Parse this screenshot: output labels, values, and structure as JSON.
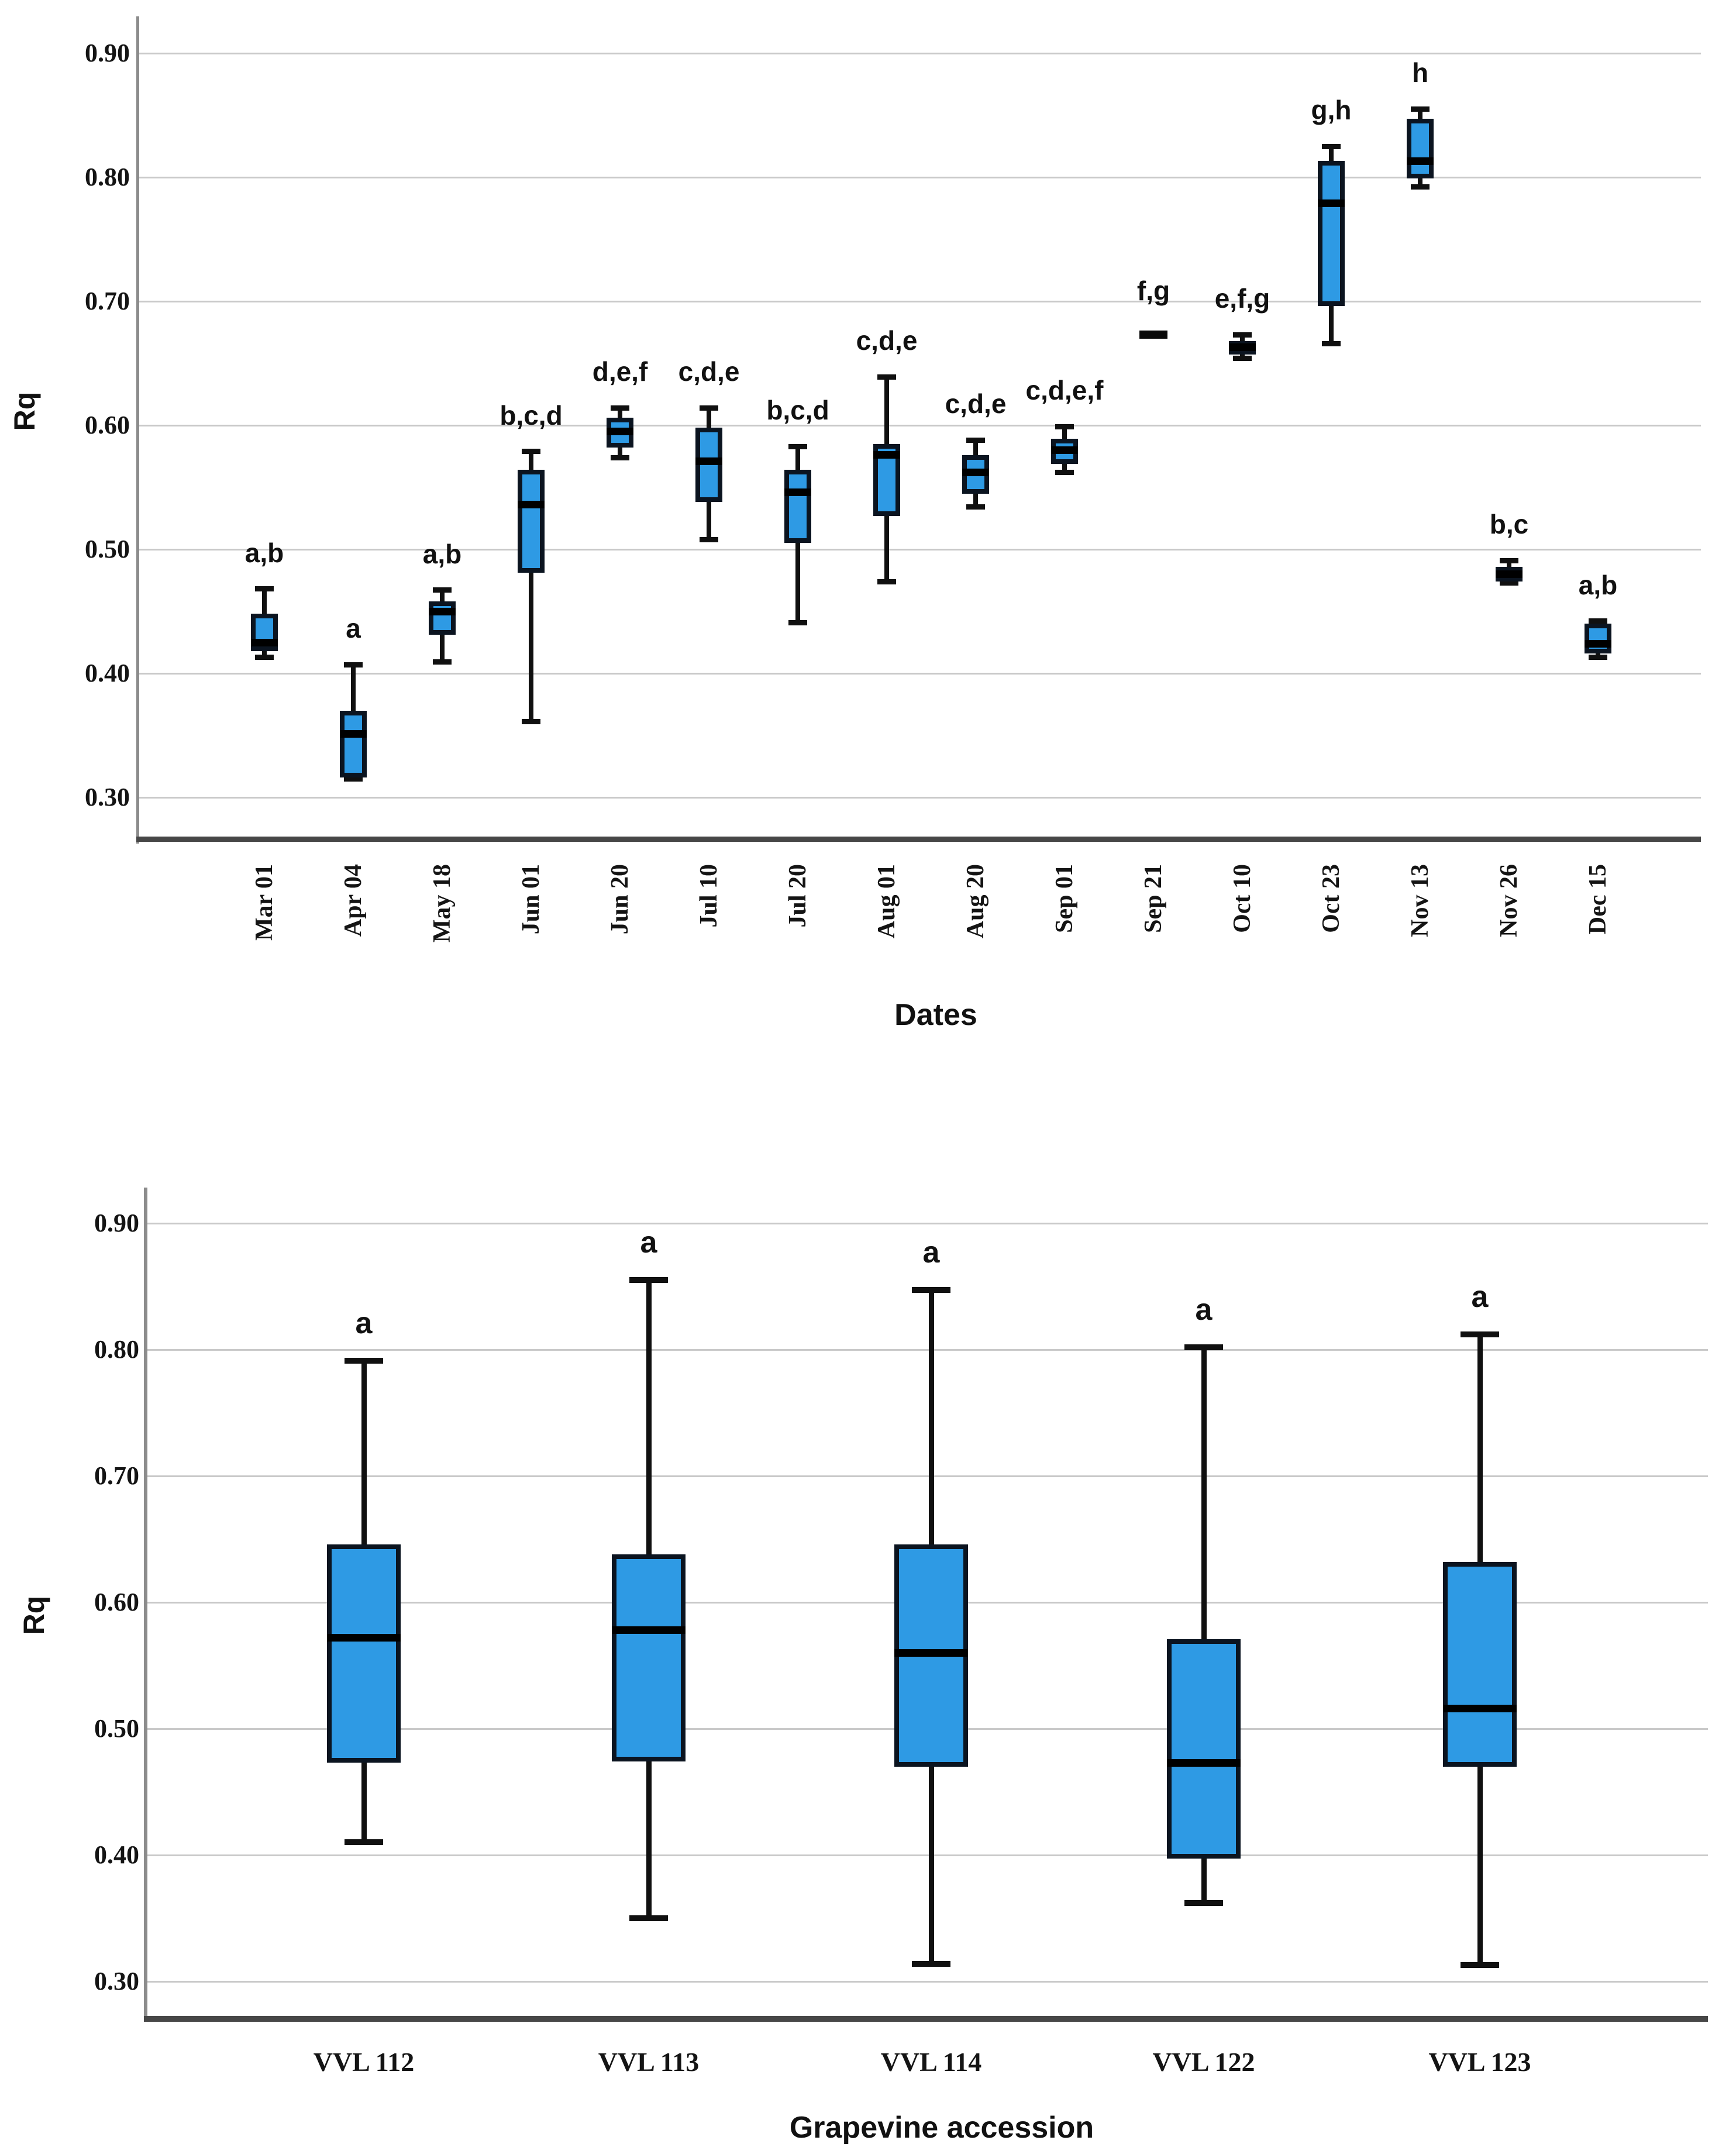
{
  "figure": {
    "description": "Two stacked box-and-whisker plots of Rq values",
    "palette": {
      "box_fill": "#2e9ae4",
      "box_border": "#0b1420",
      "median_color": "#000000",
      "whisker_color": "#101010",
      "grid_color": "#c9c9c9",
      "spine_color": "#8c8c8c",
      "baseline_color": "#474747",
      "text_color": "#141414",
      "background": "#ffffff"
    }
  },
  "chart_data": [
    {
      "type": "boxplot",
      "title": "",
      "ylabel": "Rq",
      "xlabel": "Dates",
      "ylim": [
        0.27,
        0.93
      ],
      "grid": true,
      "legend": "none",
      "yticks": [
        0.9,
        0.8,
        0.7,
        0.6,
        0.5,
        0.4,
        0.3
      ],
      "ytick_labels": [
        "0.90",
        "0.80",
        "0.70",
        "0.60",
        "0.50",
        "0.40",
        "0.30"
      ],
      "categories": [
        "Mar 01",
        "Apr 04",
        "May 18",
        "Jun 01",
        "Jun 20",
        "Jul 10",
        "Jul 20",
        "Aug 01",
        "Aug 20",
        "Sep 01",
        "Sep 21",
        "Oct 10",
        "Oct 23",
        "Nov 13",
        "Nov 26",
        "Dec 15"
      ],
      "boxes": [
        {
          "category": "Mar 01",
          "low": 0.413,
          "q1": 0.418,
          "median": 0.425,
          "q3": 0.448,
          "high": 0.468,
          "sig": "a,b"
        },
        {
          "category": "Apr 04",
          "low": 0.315,
          "q1": 0.316,
          "median": 0.351,
          "q3": 0.37,
          "high": 0.407,
          "sig": "a"
        },
        {
          "category": "May 18",
          "low": 0.409,
          "q1": 0.431,
          "median": 0.45,
          "q3": 0.458,
          "high": 0.467,
          "sig": "a,b"
        },
        {
          "category": "Jun 01",
          "low": 0.361,
          "q1": 0.481,
          "median": 0.536,
          "q3": 0.564,
          "high": 0.579,
          "sig": "b,c,d"
        },
        {
          "category": "Jun 20",
          "low": 0.574,
          "q1": 0.582,
          "median": 0.595,
          "q3": 0.606,
          "high": 0.614,
          "sig": "d,e,f"
        },
        {
          "category": "Jul 10",
          "low": 0.508,
          "q1": 0.538,
          "median": 0.571,
          "q3": 0.598,
          "high": 0.614,
          "sig": "c,d,e"
        },
        {
          "category": "Jul 20",
          "low": 0.441,
          "q1": 0.505,
          "median": 0.546,
          "q3": 0.564,
          "high": 0.583,
          "sig": "b,c,d"
        },
        {
          "category": "Aug 01",
          "low": 0.474,
          "q1": 0.527,
          "median": 0.576,
          "q3": 0.585,
          "high": 0.639,
          "sig": "c,d,e"
        },
        {
          "category": "Aug 20",
          "low": 0.534,
          "q1": 0.545,
          "median": 0.562,
          "q3": 0.576,
          "high": 0.588,
          "sig": "c,d,e"
        },
        {
          "category": "Sep 01",
          "low": 0.562,
          "q1": 0.569,
          "median": 0.58,
          "q3": 0.589,
          "high": 0.599,
          "sig": "c,d,e,f"
        },
        {
          "category": "Sep 21",
          "low": 0.673,
          "q1": 0.673,
          "median": 0.673,
          "q3": 0.673,
          "high": 0.673,
          "median_only": true,
          "sig": "f,g"
        },
        {
          "category": "Oct 10",
          "low": 0.654,
          "q1": 0.657,
          "median": 0.663,
          "q3": 0.668,
          "high": 0.673,
          "sig": "e,f,g"
        },
        {
          "category": "Oct 23",
          "low": 0.666,
          "q1": 0.696,
          "median": 0.779,
          "q3": 0.813,
          "high": 0.825,
          "sig": "g,h"
        },
        {
          "category": "Nov 13",
          "low": 0.792,
          "q1": 0.799,
          "median": 0.813,
          "q3": 0.847,
          "high": 0.855,
          "sig": "h"
        },
        {
          "category": "Nov 26",
          "low": 0.473,
          "q1": 0.474,
          "median": 0.48,
          "q3": 0.486,
          "high": 0.491,
          "sig": "b,c"
        },
        {
          "category": "Dec 15",
          "low": 0.413,
          "q1": 0.416,
          "median": 0.424,
          "q3": 0.44,
          "high": 0.442,
          "sig": "a,b"
        }
      ]
    },
    {
      "type": "boxplot",
      "title": "",
      "ylabel": "Rq",
      "xlabel": "Grapevine accession",
      "ylim": [
        0.27,
        0.93
      ],
      "grid": true,
      "legend": "none",
      "yticks": [
        0.9,
        0.8,
        0.7,
        0.6,
        0.5,
        0.4,
        0.3
      ],
      "ytick_labels": [
        "0.90",
        "0.80",
        "0.70",
        "0.60",
        "0.50",
        "0.40",
        "0.30"
      ],
      "categories": [
        "VVL 112",
        "VVL 113",
        "VVL 114",
        "VVL 122",
        "VVL 123"
      ],
      "boxes": [
        {
          "category": "VVL 112",
          "low": 0.41,
          "q1": 0.473,
          "median": 0.572,
          "q3": 0.646,
          "high": 0.791,
          "sig": "a"
        },
        {
          "category": "VVL 113",
          "low": 0.35,
          "q1": 0.474,
          "median": 0.578,
          "q3": 0.638,
          "high": 0.855,
          "sig": "a"
        },
        {
          "category": "VVL 114",
          "low": 0.314,
          "q1": 0.47,
          "median": 0.56,
          "q3": 0.646,
          "high": 0.847,
          "sig": "a"
        },
        {
          "category": "VVL 122",
          "low": 0.362,
          "q1": 0.397,
          "median": 0.473,
          "q3": 0.571,
          "high": 0.802,
          "sig": "a"
        },
        {
          "category": "VVL 123",
          "low": 0.313,
          "q1": 0.47,
          "median": 0.516,
          "q3": 0.632,
          "high": 0.812,
          "sig": "a"
        }
      ]
    }
  ]
}
